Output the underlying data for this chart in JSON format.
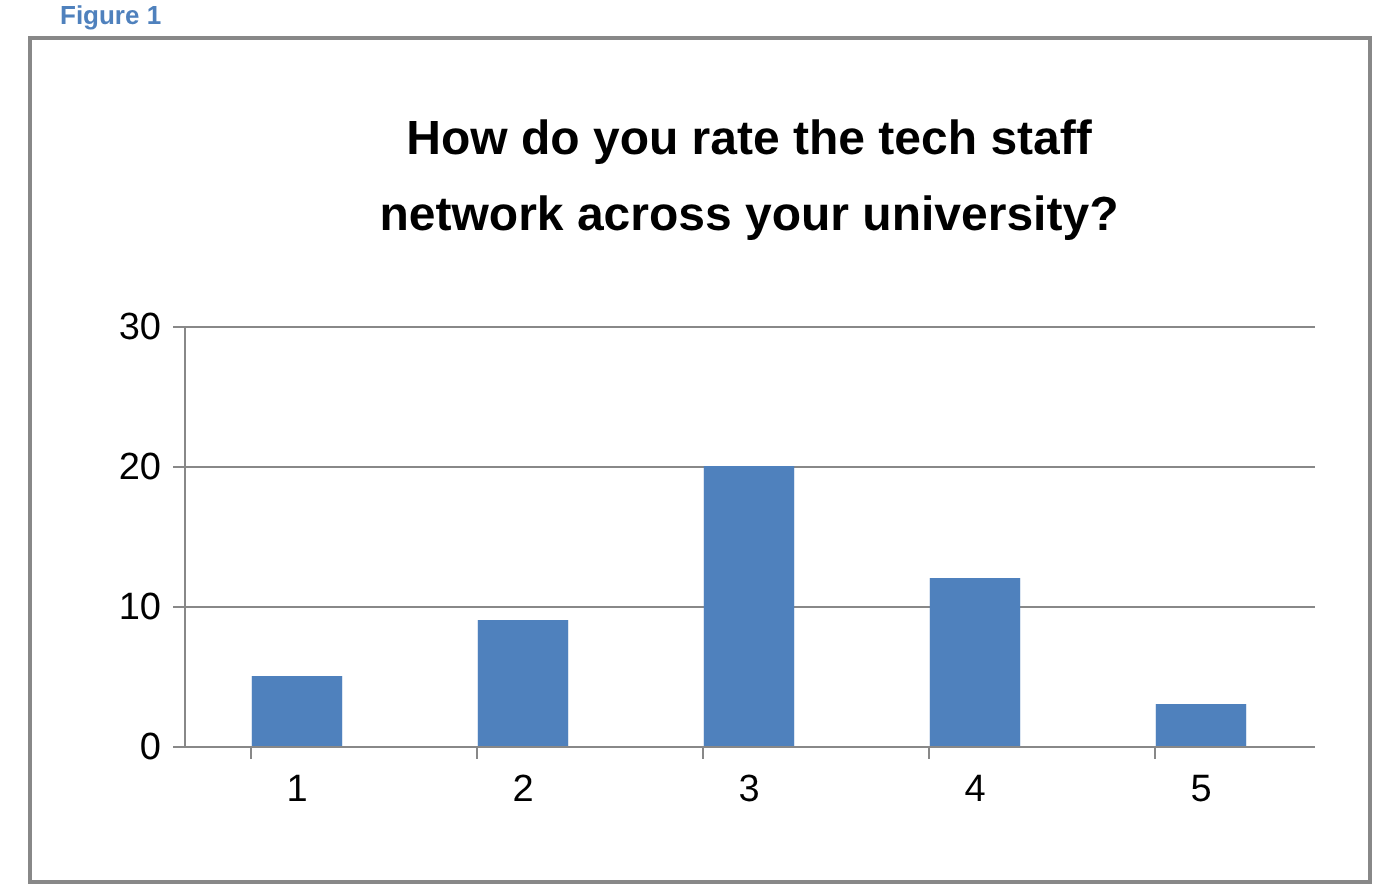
{
  "chart_data": {
    "type": "bar",
    "title": "How do you rate the tech staff network across your university?",
    "categories": [
      "1",
      "2",
      "3",
      "4",
      "5"
    ],
    "values": [
      5,
      9,
      20,
      12,
      3
    ],
    "color": "#4f81bd",
    "ylim": [
      0,
      30
    ],
    "yticks": [
      0,
      10,
      20,
      30
    ],
    "grid": "y",
    "annotations": [
      "Figure 1"
    ]
  }
}
